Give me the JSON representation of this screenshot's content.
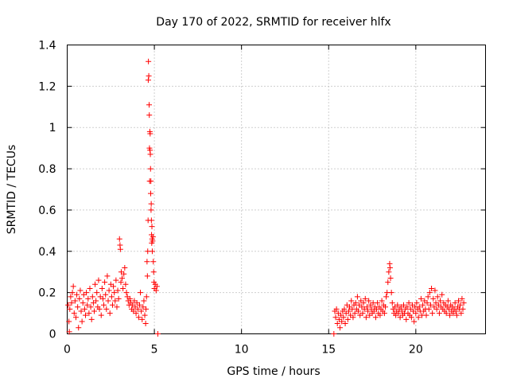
{
  "chart_data": {
    "type": "scatter",
    "title": "Day 170 of 2022, SRMTID for receiver hlfx",
    "xlabel": "GPS time / hours",
    "ylabel": "SRMTID / TECUs",
    "xlim": [
      0,
      24
    ],
    "ylim": [
      0,
      1.4
    ],
    "xticks": [
      0,
      5,
      10,
      15,
      20
    ],
    "xtick_labels": [
      "0",
      "5",
      "10",
      "15",
      "20"
    ],
    "yticks": [
      0,
      0.2,
      0.4,
      0.6,
      0.8,
      1,
      1.2,
      1.4
    ],
    "ytick_labels": [
      "0",
      "0.2",
      "0.4",
      "0.6",
      "0.8",
      "1",
      "1.2",
      "1.4"
    ],
    "grid": true,
    "marker": "+",
    "color": "#ff0000",
    "series": [
      {
        "name": "SRMTID",
        "points": [
          [
            0.05,
            0.14
          ],
          [
            0.1,
            0.06
          ],
          [
            0.12,
            0.01
          ],
          [
            0.15,
            0.12
          ],
          [
            0.2,
            0.18
          ],
          [
            0.25,
            0.15
          ],
          [
            0.3,
            0.2
          ],
          [
            0.35,
            0.23
          ],
          [
            0.4,
            0.1
          ],
          [
            0.45,
            0.16
          ],
          [
            0.5,
            0.08
          ],
          [
            0.55,
            0.19
          ],
          [
            0.6,
            0.13
          ],
          [
            0.65,
            0.03
          ],
          [
            0.7,
            0.17
          ],
          [
            0.75,
            0.21
          ],
          [
            0.8,
            0.11
          ],
          [
            0.85,
            0.06
          ],
          [
            0.9,
            0.15
          ],
          [
            0.95,
            0.19
          ],
          [
            1.0,
            0.12
          ],
          [
            1.05,
            0.09
          ],
          [
            1.1,
            0.2
          ],
          [
            1.15,
            0.14
          ],
          [
            1.2,
            0.17
          ],
          [
            1.25,
            0.1
          ],
          [
            1.3,
            0.22
          ],
          [
            1.35,
            0.13
          ],
          [
            1.4,
            0.07
          ],
          [
            1.45,
            0.18
          ],
          [
            1.5,
            0.15
          ],
          [
            1.55,
            0.11
          ],
          [
            1.6,
            0.24
          ],
          [
            1.65,
            0.16
          ],
          [
            1.7,
            0.2
          ],
          [
            1.75,
            0.13
          ],
          [
            1.8,
            0.26
          ],
          [
            1.85,
            0.12
          ],
          [
            1.9,
            0.18
          ],
          [
            1.95,
            0.09
          ],
          [
            2.0,
            0.22
          ],
          [
            2.05,
            0.17
          ],
          [
            2.1,
            0.14
          ],
          [
            2.15,
            0.25
          ],
          [
            2.2,
            0.19
          ],
          [
            2.25,
            0.12
          ],
          [
            2.3,
            0.28
          ],
          [
            2.35,
            0.16
          ],
          [
            2.4,
            0.21
          ],
          [
            2.45,
            0.1
          ],
          [
            2.5,
            0.24
          ],
          [
            2.55,
            0.18
          ],
          [
            2.6,
            0.14
          ],
          [
            2.65,
            0.23
          ],
          [
            2.7,
            0.2
          ],
          [
            2.75,
            0.16
          ],
          [
            2.8,
            0.26
          ],
          [
            2.85,
            0.13
          ],
          [
            2.9,
            0.21
          ],
          [
            2.95,
            0.17
          ],
          [
            3.0,
            0.46
          ],
          [
            3.03,
            0.43
          ],
          [
            3.05,
            0.41
          ],
          [
            3.08,
            0.25
          ],
          [
            3.1,
            0.3
          ],
          [
            3.15,
            0.27
          ],
          [
            3.2,
            0.22
          ],
          [
            3.25,
            0.29
          ],
          [
            3.3,
            0.32
          ],
          [
            3.35,
            0.24
          ],
          [
            3.4,
            0.2
          ],
          [
            3.45,
            0.18
          ],
          [
            3.5,
            0.16
          ],
          [
            3.55,
            0.14
          ],
          [
            3.6,
            0.17
          ],
          [
            3.65,
            0.15
          ],
          [
            3.7,
            0.12
          ],
          [
            3.75,
            0.14
          ],
          [
            3.8,
            0.11
          ],
          [
            3.85,
            0.16
          ],
          [
            3.9,
            0.13
          ],
          [
            3.95,
            0.1
          ],
          [
            4.0,
            0.15
          ],
          [
            4.05,
            0.12
          ],
          [
            4.1,
            0.08
          ],
          [
            4.15,
            0.14
          ],
          [
            4.2,
            0.2
          ],
          [
            4.25,
            0.11
          ],
          [
            4.3,
            0.07
          ],
          [
            4.35,
            0.13
          ],
          [
            4.4,
            0.16
          ],
          [
            4.45,
            0.09
          ],
          [
            4.5,
            0.05
          ],
          [
            4.52,
            0.12
          ],
          [
            4.55,
            0.18
          ],
          [
            4.58,
            0.35
          ],
          [
            4.6,
            0.28
          ],
          [
            4.62,
            0.4
          ],
          [
            4.64,
            0.55
          ],
          [
            4.65,
            1.23
          ],
          [
            4.66,
            1.32
          ],
          [
            4.68,
            1.25
          ],
          [
            4.7,
            1.11
          ],
          [
            4.71,
            1.06
          ],
          [
            4.72,
            0.9
          ],
          [
            4.73,
            0.74
          ],
          [
            4.74,
            0.98
          ],
          [
            4.75,
            0.89
          ],
          [
            4.76,
            0.97
          ],
          [
            4.77,
            0.87
          ],
          [
            4.78,
            0.8
          ],
          [
            4.79,
            0.68
          ],
          [
            4.8,
            0.74
          ],
          [
            4.81,
            0.6
          ],
          [
            4.82,
            0.63
          ],
          [
            4.83,
            0.55
          ],
          [
            4.84,
            0.48
          ],
          [
            4.85,
            0.44
          ],
          [
            4.86,
            0.52
          ],
          [
            4.87,
            0.46
          ],
          [
            4.88,
            0.4
          ],
          [
            4.9,
            0.45
          ],
          [
            4.92,
            0.47
          ],
          [
            4.94,
            0.35
          ],
          [
            4.96,
            0.3
          ],
          [
            4.98,
            0.25
          ],
          [
            5.0,
            0.22
          ],
          [
            5.05,
            0.24
          ],
          [
            5.1,
            0.21
          ],
          [
            5.15,
            0.23
          ],
          [
            5.2,
            0.0
          ],
          [
            15.3,
            0.0
          ],
          [
            15.35,
            0.11
          ],
          [
            15.4,
            0.08
          ],
          [
            15.45,
            0.12
          ],
          [
            15.5,
            0.05
          ],
          [
            15.55,
            0.1
          ],
          [
            15.6,
            0.07
          ],
          [
            15.65,
            0.03
          ],
          [
            15.7,
            0.09
          ],
          [
            15.75,
            0.06
          ],
          [
            15.8,
            0.11
          ],
          [
            15.85,
            0.08
          ],
          [
            15.9,
            0.12
          ],
          [
            15.95,
            0.05
          ],
          [
            16.0,
            0.1
          ],
          [
            16.05,
            0.14
          ],
          [
            16.1,
            0.07
          ],
          [
            16.15,
            0.11
          ],
          [
            16.2,
            0.13
          ],
          [
            16.25,
            0.09
          ],
          [
            16.3,
            0.16
          ],
          [
            16.35,
            0.12
          ],
          [
            16.4,
            0.08
          ],
          [
            16.45,
            0.14
          ],
          [
            16.5,
            0.1
          ],
          [
            16.55,
            0.15
          ],
          [
            16.6,
            0.12
          ],
          [
            16.65,
            0.18
          ],
          [
            16.7,
            0.11
          ],
          [
            16.75,
            0.14
          ],
          [
            16.8,
            0.09
          ],
          [
            16.85,
            0.16
          ],
          [
            16.9,
            0.13
          ],
          [
            16.95,
            0.1
          ],
          [
            17.0,
            0.15
          ],
          [
            17.05,
            0.12
          ],
          [
            17.1,
            0.17
          ],
          [
            17.15,
            0.08
          ],
          [
            17.2,
            0.13
          ],
          [
            17.25,
            0.11
          ],
          [
            17.3,
            0.16
          ],
          [
            17.35,
            0.09
          ],
          [
            17.4,
            0.14
          ],
          [
            17.45,
            0.12
          ],
          [
            17.5,
            0.1
          ],
          [
            17.55,
            0.15
          ],
          [
            17.6,
            0.11
          ],
          [
            17.65,
            0.13
          ],
          [
            17.7,
            0.08
          ],
          [
            17.75,
            0.12
          ],
          [
            17.8,
            0.15
          ],
          [
            17.85,
            0.1
          ],
          [
            17.9,
            0.13
          ],
          [
            17.95,
            0.09
          ],
          [
            18.0,
            0.12
          ],
          [
            18.05,
            0.16
          ],
          [
            18.1,
            0.11
          ],
          [
            18.15,
            0.14
          ],
          [
            18.2,
            0.1
          ],
          [
            18.25,
            0.13
          ],
          [
            18.3,
            0.18
          ],
          [
            18.35,
            0.2
          ],
          [
            18.4,
            0.25
          ],
          [
            18.45,
            0.3
          ],
          [
            18.5,
            0.34
          ],
          [
            18.52,
            0.32
          ],
          [
            18.55,
            0.27
          ],
          [
            18.6,
            0.2
          ],
          [
            18.65,
            0.15
          ],
          [
            18.7,
            0.12
          ],
          [
            18.75,
            0.1
          ],
          [
            18.8,
            0.13
          ],
          [
            18.85,
            0.09
          ],
          [
            18.9,
            0.11
          ],
          [
            18.95,
            0.14
          ],
          [
            19.0,
            0.1
          ],
          [
            19.05,
            0.12
          ],
          [
            19.1,
            0.08
          ],
          [
            19.15,
            0.13
          ],
          [
            19.2,
            0.11
          ],
          [
            19.25,
            0.09
          ],
          [
            19.3,
            0.14
          ],
          [
            19.35,
            0.1
          ],
          [
            19.4,
            0.12
          ],
          [
            19.45,
            0.07
          ],
          [
            19.5,
            0.13
          ],
          [
            19.55,
            0.1
          ],
          [
            19.6,
            0.15
          ],
          [
            19.65,
            0.09
          ],
          [
            19.7,
            0.12
          ],
          [
            19.75,
            0.08
          ],
          [
            19.8,
            0.14
          ],
          [
            19.85,
            0.11
          ],
          [
            19.9,
            0.06
          ],
          [
            19.95,
            0.13
          ],
          [
            20.0,
            0.1
          ],
          [
            20.05,
            0.15
          ],
          [
            20.1,
            0.12
          ],
          [
            20.15,
            0.08
          ],
          [
            20.2,
            0.13
          ],
          [
            20.25,
            0.11
          ],
          [
            20.3,
            0.17
          ],
          [
            20.35,
            0.09
          ],
          [
            20.4,
            0.14
          ],
          [
            20.45,
            0.11
          ],
          [
            20.5,
            0.16
          ],
          [
            20.55,
            0.12
          ],
          [
            20.6,
            0.09
          ],
          [
            20.65,
            0.15
          ],
          [
            20.7,
            0.18
          ],
          [
            20.75,
            0.12
          ],
          [
            20.8,
            0.2
          ],
          [
            20.85,
            0.14
          ],
          [
            20.9,
            0.22
          ],
          [
            20.95,
            0.1
          ],
          [
            21.0,
            0.17
          ],
          [
            21.05,
            0.13
          ],
          [
            21.1,
            0.21
          ],
          [
            21.15,
            0.15
          ],
          [
            21.2,
            0.12
          ],
          [
            21.25,
            0.18
          ],
          [
            21.3,
            0.14
          ],
          [
            21.35,
            0.1
          ],
          [
            21.4,
            0.16
          ],
          [
            21.45,
            0.13
          ],
          [
            21.5,
            0.19
          ],
          [
            21.55,
            0.12
          ],
          [
            21.6,
            0.15
          ],
          [
            21.65,
            0.11
          ],
          [
            21.7,
            0.14
          ],
          [
            21.75,
            0.1
          ],
          [
            21.8,
            0.13
          ],
          [
            21.85,
            0.16
          ],
          [
            21.9,
            0.12
          ],
          [
            21.95,
            0.09
          ],
          [
            22.0,
            0.14
          ],
          [
            22.05,
            0.11
          ],
          [
            22.1,
            0.13
          ],
          [
            22.15,
            0.1
          ],
          [
            22.2,
            0.12
          ],
          [
            22.25,
            0.15
          ],
          [
            22.3,
            0.11
          ],
          [
            22.35,
            0.09
          ],
          [
            22.4,
            0.13
          ],
          [
            22.45,
            0.16
          ],
          [
            22.5,
            0.12
          ],
          [
            22.55,
            0.14
          ],
          [
            22.6,
            0.1
          ],
          [
            22.65,
            0.17
          ],
          [
            22.7,
            0.12
          ],
          [
            22.75,
            0.15
          ]
        ]
      }
    ]
  }
}
